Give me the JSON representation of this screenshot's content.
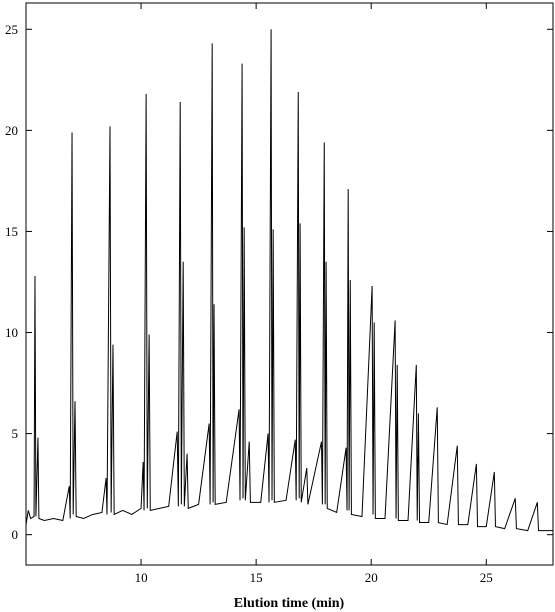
{
  "chart_data": {
    "type": "line",
    "xlabel": "Elution time (min)",
    "xlim": [
      5,
      27.9
    ],
    "ylim": [
      -1.5,
      26.3
    ],
    "xticks": [
      10,
      15,
      20,
      25
    ],
    "yticks": [
      0,
      5,
      10,
      15,
      20,
      25
    ],
    "grid": false,
    "color": "#000000",
    "x": [
      5.0,
      5.1,
      5.2,
      5.35,
      5.39,
      5.43,
      5.52,
      5.56,
      5.8,
      6.2,
      6.6,
      6.88,
      6.92,
      7.0,
      7.05,
      7.13,
      7.18,
      7.5,
      7.9,
      8.3,
      8.48,
      8.52,
      8.65,
      8.7,
      8.78,
      8.83,
      9.2,
      9.6,
      10.0,
      10.09,
      10.13,
      10.22,
      10.27,
      10.35,
      10.4,
      10.8,
      11.2,
      11.57,
      11.62,
      11.7,
      11.75,
      11.83,
      11.88,
      12.0,
      12.05,
      12.5,
      12.96,
      13.0,
      13.09,
      13.13,
      13.17,
      13.22,
      13.7,
      14.26,
      14.3,
      14.39,
      14.43,
      14.48,
      14.53,
      14.7,
      14.75,
      15.2,
      15.52,
      15.56,
      15.65,
      15.69,
      15.74,
      15.79,
      16.3,
      16.7,
      16.74,
      16.83,
      16.87,
      16.91,
      16.96,
      17.2,
      17.25,
      17.84,
      17.88,
      17.96,
      18.0,
      18.04,
      18.09,
      18.5,
      18.91,
      18.95,
      19.0,
      19.04,
      19.09,
      19.14,
      19.6,
      20.04,
      20.08,
      20.13,
      20.18,
      20.6,
      21.04,
      21.08,
      21.13,
      21.18,
      21.6,
      21.96,
      22.0,
      22.05,
      22.1,
      22.5,
      22.87,
      22.92,
      23.3,
      23.74,
      23.79,
      24.2,
      24.57,
      24.62,
      25.0,
      25.35,
      25.4,
      25.8,
      26.26,
      26.31,
      26.8,
      27.22,
      27.27,
      27.9
    ],
    "values": [
      0.5,
      1.2,
      0.8,
      0.9,
      12.8,
      0.9,
      4.8,
      0.8,
      0.7,
      0.8,
      0.7,
      2.4,
      0.8,
      19.9,
      1.0,
      6.6,
      0.9,
      0.8,
      1.0,
      1.1,
      2.8,
      1.0,
      20.2,
      1.1,
      9.4,
      1.0,
      1.2,
      1.0,
      1.3,
      3.6,
      1.2,
      21.8,
      1.3,
      9.9,
      1.2,
      1.3,
      1.4,
      5.1,
      1.4,
      21.4,
      1.5,
      13.5,
      1.4,
      4.0,
      1.3,
      1.5,
      5.5,
      1.5,
      24.3,
      1.6,
      11.4,
      1.5,
      1.6,
      6.2,
      1.7,
      23.3,
      1.8,
      15.2,
      1.7,
      4.6,
      1.6,
      1.6,
      5.0,
      1.6,
      25.0,
      1.7,
      15.1,
      1.6,
      1.7,
      4.7,
      1.7,
      21.9,
      1.8,
      15.4,
      1.6,
      3.3,
      1.5,
      4.6,
      1.5,
      19.4,
      1.5,
      13.5,
      1.3,
      1.1,
      4.3,
      1.2,
      17.1,
      1.2,
      12.6,
      1.0,
      0.9,
      12.3,
      1.0,
      10.5,
      0.8,
      0.8,
      10.6,
      0.8,
      8.4,
      0.7,
      0.7,
      8.4,
      0.7,
      6.0,
      0.6,
      0.6,
      6.3,
      0.6,
      0.5,
      4.4,
      0.5,
      0.5,
      3.5,
      0.4,
      0.4,
      3.1,
      0.4,
      0.3,
      1.8,
      0.3,
      0.2,
      1.6,
      0.2,
      0.2
    ]
  }
}
